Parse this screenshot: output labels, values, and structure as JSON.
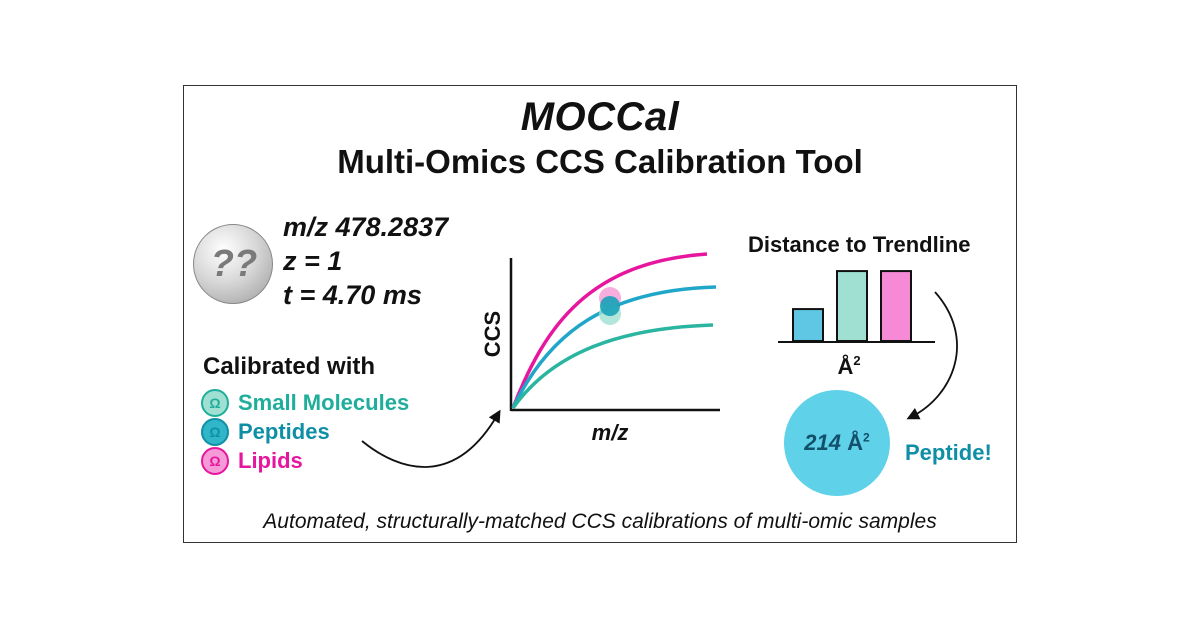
{
  "title": "MOCCal",
  "subtitle": "Multi-Omics CCS Calibration Tool",
  "unknown": {
    "symbol": "??",
    "mz_line": "m/z 478.2837",
    "z_line": "z = 1",
    "t_line": "t = 4.70 ms"
  },
  "calibration": {
    "heading": "Calibrated with",
    "omega_symbol": "Ω",
    "items": [
      {
        "label": "Small Molecules",
        "color": "#1fae9b",
        "fill": "#9fe0d2"
      },
      {
        "label": "Peptides",
        "color": "#0f8fa6",
        "fill": "#2fb6c8"
      },
      {
        "label": "Lipids",
        "color": "#e6169e",
        "fill": "#f59ad6"
      }
    ]
  },
  "chart_data": {
    "type": "line",
    "xlabel": "m/z",
    "ylabel": "CCS",
    "series": [
      {
        "color": "#e6169e"
      },
      {
        "color": "#1fa6c8"
      },
      {
        "color": "#2ab5a0"
      }
    ]
  },
  "distance": {
    "title": "Distance to Trendline",
    "unit": "Å",
    "unit_exp": "2",
    "bars": [
      {
        "value": 0.42,
        "color": "#5fc6e3"
      },
      {
        "value": 0.92,
        "color": "#9fe0d2"
      },
      {
        "value": 0.92,
        "color": "#f78ad6"
      }
    ]
  },
  "result": {
    "value": "214",
    "unit": "Å",
    "unit_exp": "2",
    "label": "Peptide!"
  },
  "footer": "Automated, structurally-matched CCS calibrations of multi-omic samples"
}
